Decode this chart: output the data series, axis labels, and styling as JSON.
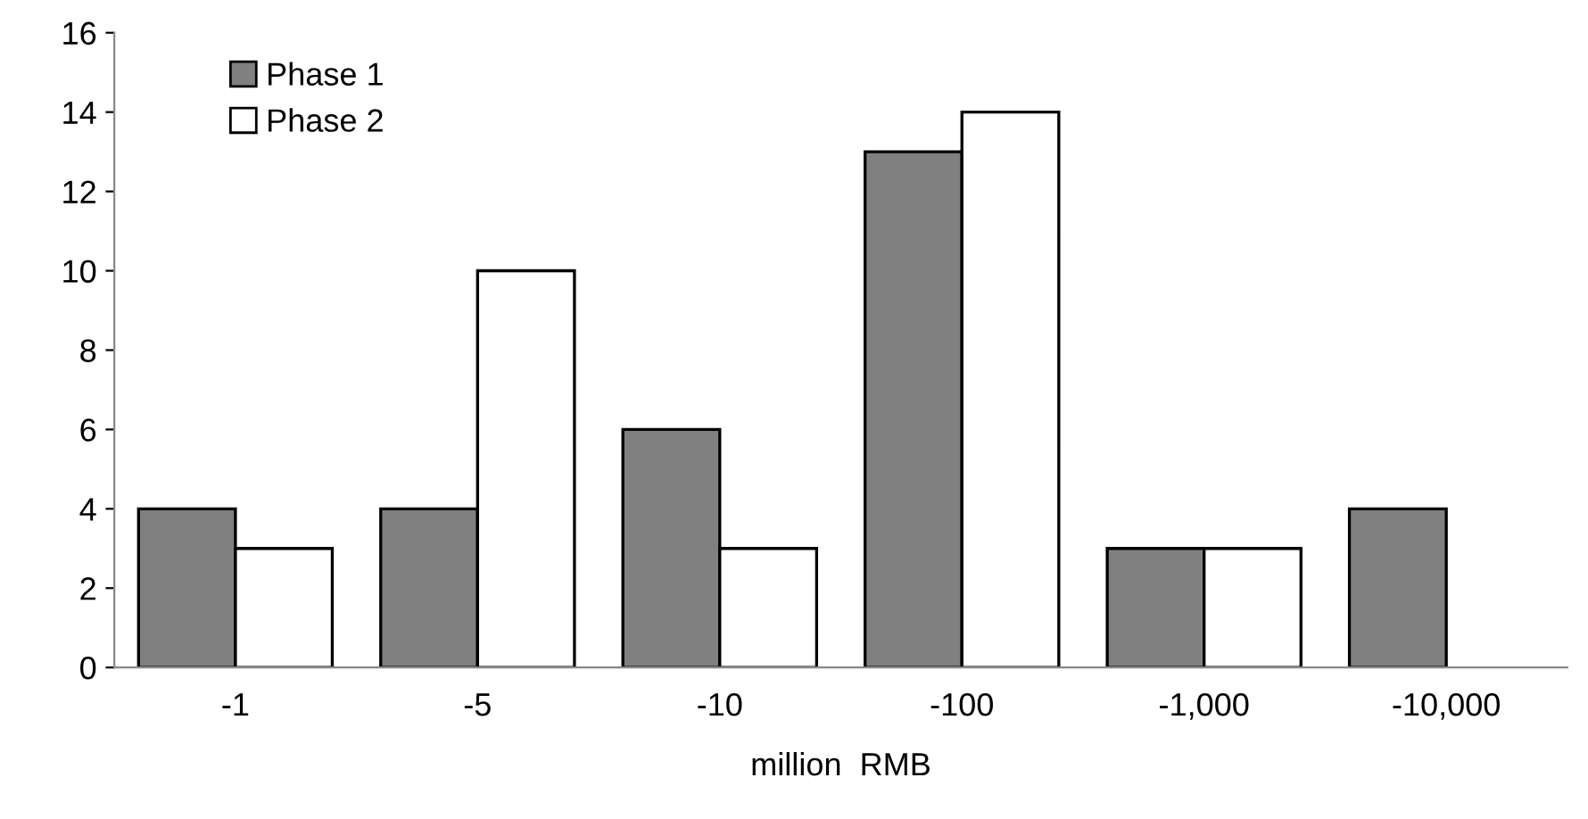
{
  "chart_data": {
    "type": "bar",
    "xlabel": "million  RMB",
    "categories": [
      "-1",
      "-5",
      "-10",
      "-100",
      "-1,000",
      "-10,000"
    ],
    "series": [
      {
        "name": "Phase 1",
        "color": "#808080",
        "values": [
          4,
          4,
          6,
          13,
          3,
          4
        ]
      },
      {
        "name": "Phase 2",
        "color": "#ffffff",
        "values": [
          3,
          10,
          3,
          14,
          3,
          null
        ]
      }
    ],
    "ylim": [
      0,
      16
    ],
    "yticks": [
      0,
      2,
      4,
      6,
      8,
      10,
      12,
      14,
      16
    ],
    "grid": false,
    "legend": "top left"
  }
}
